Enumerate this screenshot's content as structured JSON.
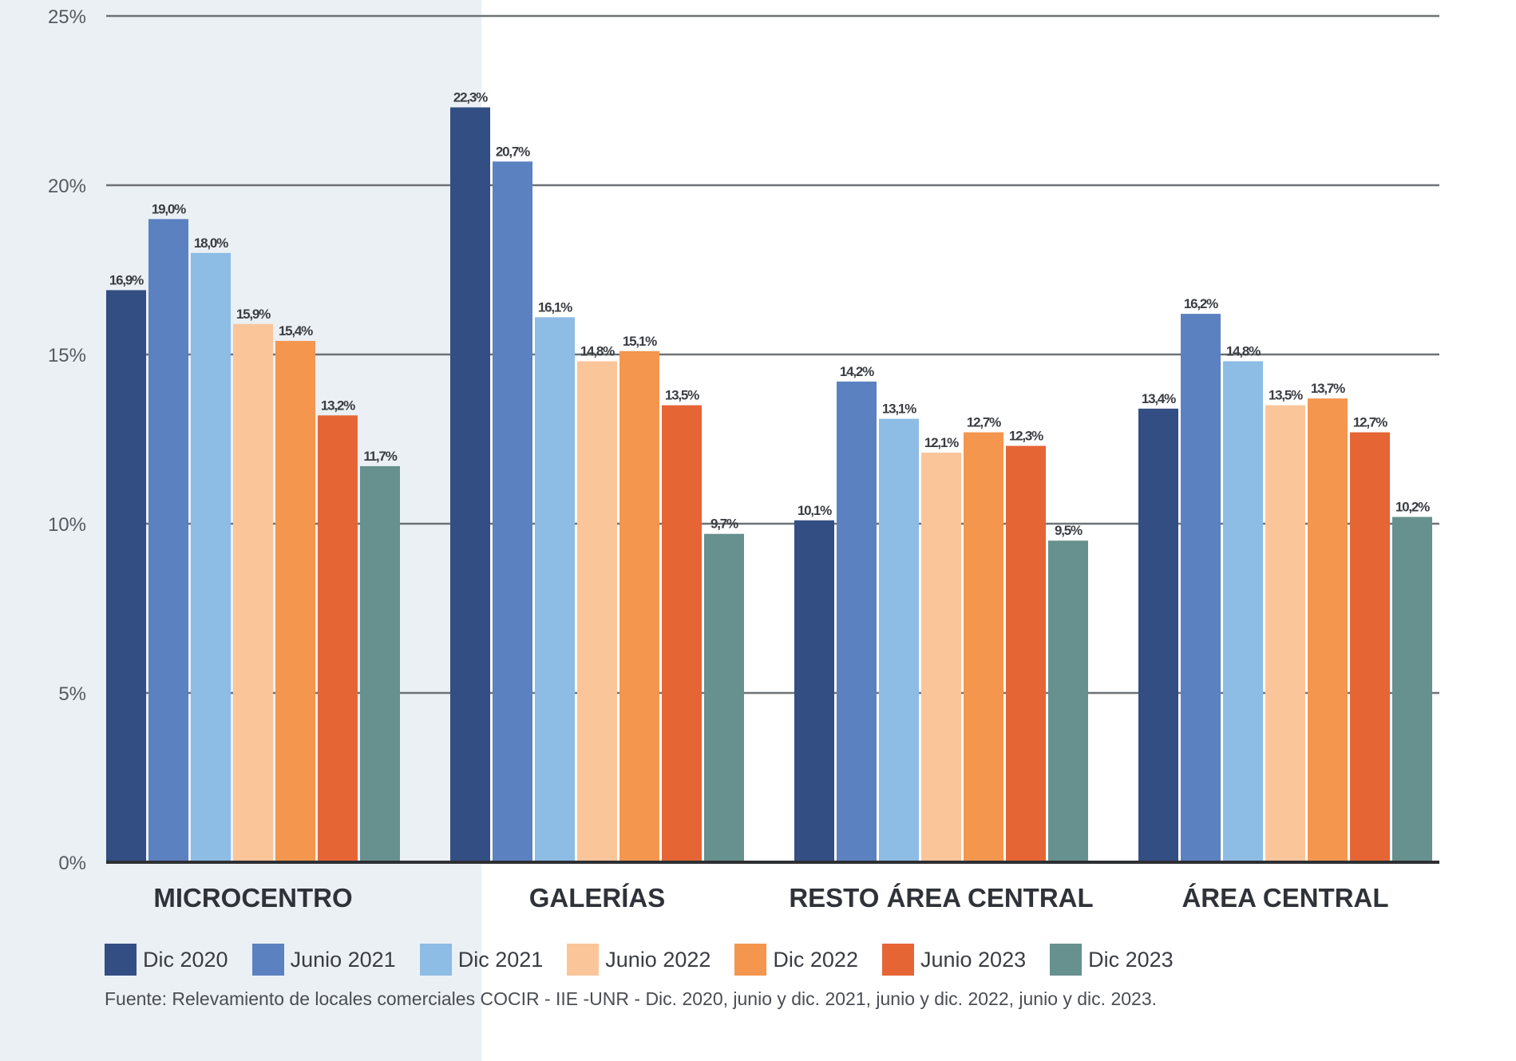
{
  "chart_data": {
    "type": "bar",
    "title": "",
    "xlabel": "",
    "ylabel": "",
    "ylim": [
      0,
      25
    ],
    "yticks": [
      0,
      5,
      10,
      15,
      20,
      25
    ],
    "ytick_labels": [
      "0%",
      "5%",
      "10%",
      "15%",
      "20%",
      "25%"
    ],
    "grid": true,
    "legend_position": "bottom",
    "categories": [
      "MICROCENTRO",
      "GALERÍAS",
      "RESTO ÁREA CENTRAL",
      "ÁREA CENTRAL"
    ],
    "series": [
      {
        "name": "Dic 2020",
        "color": "#324e82",
        "values": [
          16.9,
          22.3,
          10.1,
          13.4
        ],
        "labels": [
          "16,9%",
          "22,3%",
          "10,1%",
          "13,4%"
        ]
      },
      {
        "name": "Junio 2021",
        "color": "#5b81c0",
        "values": [
          19.0,
          20.7,
          14.2,
          16.2
        ],
        "labels": [
          "19,0%",
          "20,7%",
          "14,2%",
          "16,2%"
        ]
      },
      {
        "name": "Dic 2021",
        "color": "#8dbce4",
        "values": [
          18.0,
          16.1,
          13.1,
          14.8
        ],
        "labels": [
          "18,0%",
          "16,1%",
          "13,1%",
          "14,8%"
        ]
      },
      {
        "name": "Junio 2022",
        "color": "#fbc59a",
        "values": [
          15.9,
          14.8,
          12.1,
          13.5
        ],
        "labels": [
          "15,9%",
          "14,8%",
          "12,1%",
          "13,5%"
        ]
      },
      {
        "name": "Dic 2022",
        "color": "#f4964d",
        "values": [
          15.4,
          15.1,
          12.7,
          13.7
        ],
        "labels": [
          "15,4%",
          "15,1%",
          "12,7%",
          "13,7%"
        ]
      },
      {
        "name": "Junio 2023",
        "color": "#e66535",
        "values": [
          13.2,
          13.5,
          12.3,
          12.7
        ],
        "labels": [
          "13,2%",
          "13,5%",
          "12,3%",
          "12,7%"
        ]
      },
      {
        "name": "Dic 2023",
        "color": "#66918e",
        "values": [
          11.7,
          9.7,
          9.5,
          10.2
        ],
        "labels": [
          "11,7%",
          "9,7%",
          "9,5%",
          "10,2%"
        ]
      }
    ]
  },
  "footer": {
    "source": "Fuente: Relevamiento de locales comerciales COCIR - IIE -UNR - Dic. 2020, junio y dic. 2021, junio y dic. 2022, junio y dic. 2023."
  }
}
